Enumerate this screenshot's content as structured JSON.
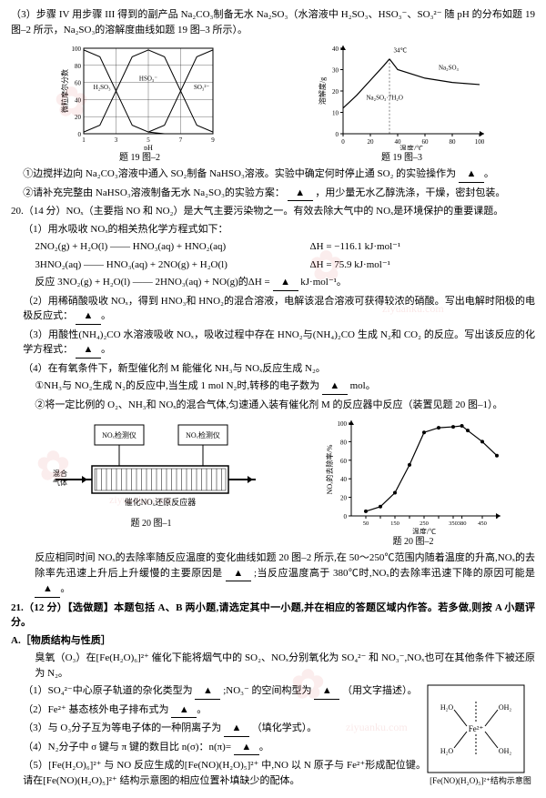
{
  "q19": {
    "p3_intro": "（3）步骤 IV 用步骤 III 得到的副产品 Na₂CO₃制备无水 Na₂SO₃（水溶液中 H₂SO₃、HSO₃⁻、SO₃²⁻ 随 pH 的分布如题 19 图–2 所示，Na₂SO₃的溶解度曲线如题 19 图–3 所示）。",
    "chart2": {
      "type": "line",
      "xlim": [
        1,
        9
      ],
      "ylim": [
        0,
        100
      ],
      "xticks": [
        1,
        3,
        5,
        7,
        9
      ],
      "yticks": [
        0,
        20,
        40,
        60,
        80,
        100
      ],
      "xlabel": "pH",
      "ylabel": "微粒摩尔分数",
      "series": [
        {
          "label": "H₂SO₃",
          "color": "#000",
          "points": [
            [
              1,
              98
            ],
            [
              2,
              90
            ],
            [
              3,
              50
            ],
            [
              4,
              10
            ],
            [
              5,
              2
            ],
            [
              6,
              0
            ]
          ]
        },
        {
          "label": "HSO₃⁻",
          "color": "#000",
          "points": [
            [
              1,
              2
            ],
            [
              2,
              10
            ],
            [
              3,
              50
            ],
            [
              4,
              90
            ],
            [
              5,
              98
            ],
            [
              6,
              90
            ],
            [
              7,
              50
            ],
            [
              8,
              10
            ],
            [
              9,
              2
            ]
          ]
        },
        {
          "label": "SO₃²⁻",
          "color": "#000",
          "points": [
            [
              5,
              2
            ],
            [
              6,
              10
            ],
            [
              7,
              50
            ],
            [
              8,
              90
            ],
            [
              9,
              98
            ]
          ]
        }
      ],
      "caption": "题 19 图–2",
      "grid_color": "#000",
      "line_width": 1,
      "font_size": 8
    },
    "chart3": {
      "type": "line",
      "xlim": [
        0,
        100
      ],
      "ylim": [
        0,
        40
      ],
      "xticks": [
        0,
        20,
        40,
        60,
        80,
        100
      ],
      "yticks": [
        0,
        10,
        20,
        30,
        40
      ],
      "xlabel": "温度/℃",
      "ylabel": "溶解度/g",
      "peak_label": "34℃",
      "series": [
        {
          "label": "Na₂SO₃·7H₂O",
          "color": "#000",
          "points": [
            [
              0,
              12
            ],
            [
              10,
              18
            ],
            [
              20,
              25
            ],
            [
              30,
              32
            ],
            [
              34,
              35
            ]
          ]
        },
        {
          "label": "Na₂SO₃",
          "color": "#000",
          "points": [
            [
              34,
              35
            ],
            [
              40,
              30
            ],
            [
              60,
              26
            ],
            [
              80,
              24
            ],
            [
              100,
              23
            ]
          ]
        }
      ],
      "caption": "题 19 图–3",
      "font_size": 8
    },
    "s1": "①边搅拌边向 Na₂CO₃溶液中通入 SO₂制备 NaHSO₃溶液。实验中确定何时停止通 SO₂ 的实验操作为",
    "s2": "②请补充完整由 NaHSO₃溶液制备无水 Na₂SO₃的实验方案：",
    "s2_tail": "，用少量无水乙醇洗涤，干燥，密封包装。",
    "blank": "▲"
  },
  "q20": {
    "header": "20.（14 分）NOₓ（主要指 NO 和 NO₂）是大气主要污染物之一。有效去除大气中的 NOₓ是环境保护的重要课题。",
    "p1": "（1）用水吸收 NOₓ的相关热化学方程式如下：",
    "eq1": "2NO₂(g) + H₂O(l) —— HNO₃(aq) + HNO₂(aq)",
    "dh1": "ΔH = −116.1 kJ·mol⁻¹",
    "eq2": "3HNO₂(aq) —— HNO₃(aq) + 2NO(g) + H₂O(l)",
    "dh2": "ΔH =  75.9 kJ·mol⁻¹",
    "eq3": "反应 3NO₂(g) + H₂O(l) —— 2HNO₃(aq) + NO(g)的ΔH =",
    "eq3_unit": "kJ·mol⁻¹。",
    "p2": "（2）用稀硝酸吸收 NOₓ，得到 HNO₃和 HNO₂的混合溶液，电解该混合溶液可获得较浓的硝酸。写出电解时阳极的电极反应式：",
    "p3": "（3）用酸性(NH₄)₂CO 水溶液吸收 NOₓ，吸收过程中存在 HNO₂与(NH₄)₂CO 生成 N₂和 CO₂ 的反应。写出该反应的化学方程式：",
    "p4": "（4）在有氧条件下，新型催化剂 M 能催化 NH₃与 NOₓ反应生成 N₂。",
    "p4_1": "①NH₃与 NO₂生成 N₂的反应中,当生成 1 mol N₂时,转移的电子数为",
    "p4_1_tail": " mol。",
    "p4_2": "②将一定比例的 O₂、NH₃和 NOₓ的混合气体,匀速通入装有催化剂 M 的反应器中反应（装置见题 20 图–1）。",
    "diagram": {
      "left_label": "混合气体",
      "det1": "NOₓ检测仪",
      "det2": "NOₓ检测仪",
      "reactor": "催化NOₓ还原反应器",
      "caption": "题 20 图–1",
      "box_color": "#000",
      "fill": "#fff",
      "font_size": 9
    },
    "chart": {
      "type": "line",
      "xlim": [
        0,
        500
      ],
      "ylim": [
        0,
        100
      ],
      "xticks": [
        50,
        100,
        150,
        200,
        250,
        300,
        350,
        380,
        450,
        500
      ],
      "yticks": [
        0,
        20,
        40,
        60,
        80,
        100
      ],
      "xlabel": "温度/℃",
      "ylabel": "NOₓ的去除率/%",
      "points": [
        [
          50,
          5
        ],
        [
          100,
          10
        ],
        [
          150,
          25
        ],
        [
          200,
          55
        ],
        [
          250,
          90
        ],
        [
          300,
          95
        ],
        [
          350,
          96
        ],
        [
          380,
          97
        ],
        [
          400,
          92
        ],
        [
          450,
          80
        ],
        [
          500,
          65
        ]
      ],
      "marker": "circle",
      "marker_size": 2,
      "color": "#000",
      "caption": "题 20 图–2",
      "font_size": 8
    },
    "tail": "反应相同时间 NOₓ的去除率随反应温度的变化曲线如题 20 图–2 所示,在 50～250℃范围内随着温度的升高,NOₓ的去除率先迅速上升后上升缓慢的主要原因是",
    "tail2": ";当反应温度高于 380℃时,NOₓ的去除率迅速下降的原因可能是",
    "blank": "▲"
  },
  "q21": {
    "header": "21.（12 分）【选做题】本题包括 A、B 两小题,请选定其中一小题,并在相应的答题区域内作答。若多做,则按 A 小题评分。",
    "A": "A.［物质结构与性质］",
    "A_intro": "臭氧（O₃）在[Fe(H₂O)₆]²⁺ 催化下能将烟气中的 SO₂、NOₓ分别氧化为 SO₄²⁻ 和 NO₃⁻,NOₓ也可在其他条件下被还原为 N₂。",
    "A1": "（1）SO₄²⁻中心原子轨道的杂化类型为",
    "A1_tail": ";NO₃⁻ 的空间构型为",
    "A1_tail2": "（用文字描述）。",
    "A2": "（2）Fe²⁺ 基态核外电子排布式为",
    "A3": "（3）与 O₃分子互为等电子体的一种阴离子为",
    "A3_tail": "（填化学式）。",
    "A4": "（4）N₂分子中 σ 键与 π 键的数目比 n(σ)：n(π)=",
    "A5": "（5）[Fe(H₂O)₆]²⁺ 与 NO 反应生成的[Fe(NO)(H₂O)₅]²⁺ 中,NO 以 N 原子与 Fe²⁺形成配位键。请在[Fe(NO)(H₂O)₅]²⁺ 结构示意图的相应位置补填缺少的配体。",
    "struct": {
      "center": "Fe²⁺",
      "ligands": [
        "H₂O",
        "OH₂",
        "OH₂",
        "OH₂"
      ],
      "caption": "[Fe(NO)(H₂O)₅]²⁺结构示意图",
      "box_color": "#000",
      "font_size": 9
    },
    "blank": "▲"
  }
}
